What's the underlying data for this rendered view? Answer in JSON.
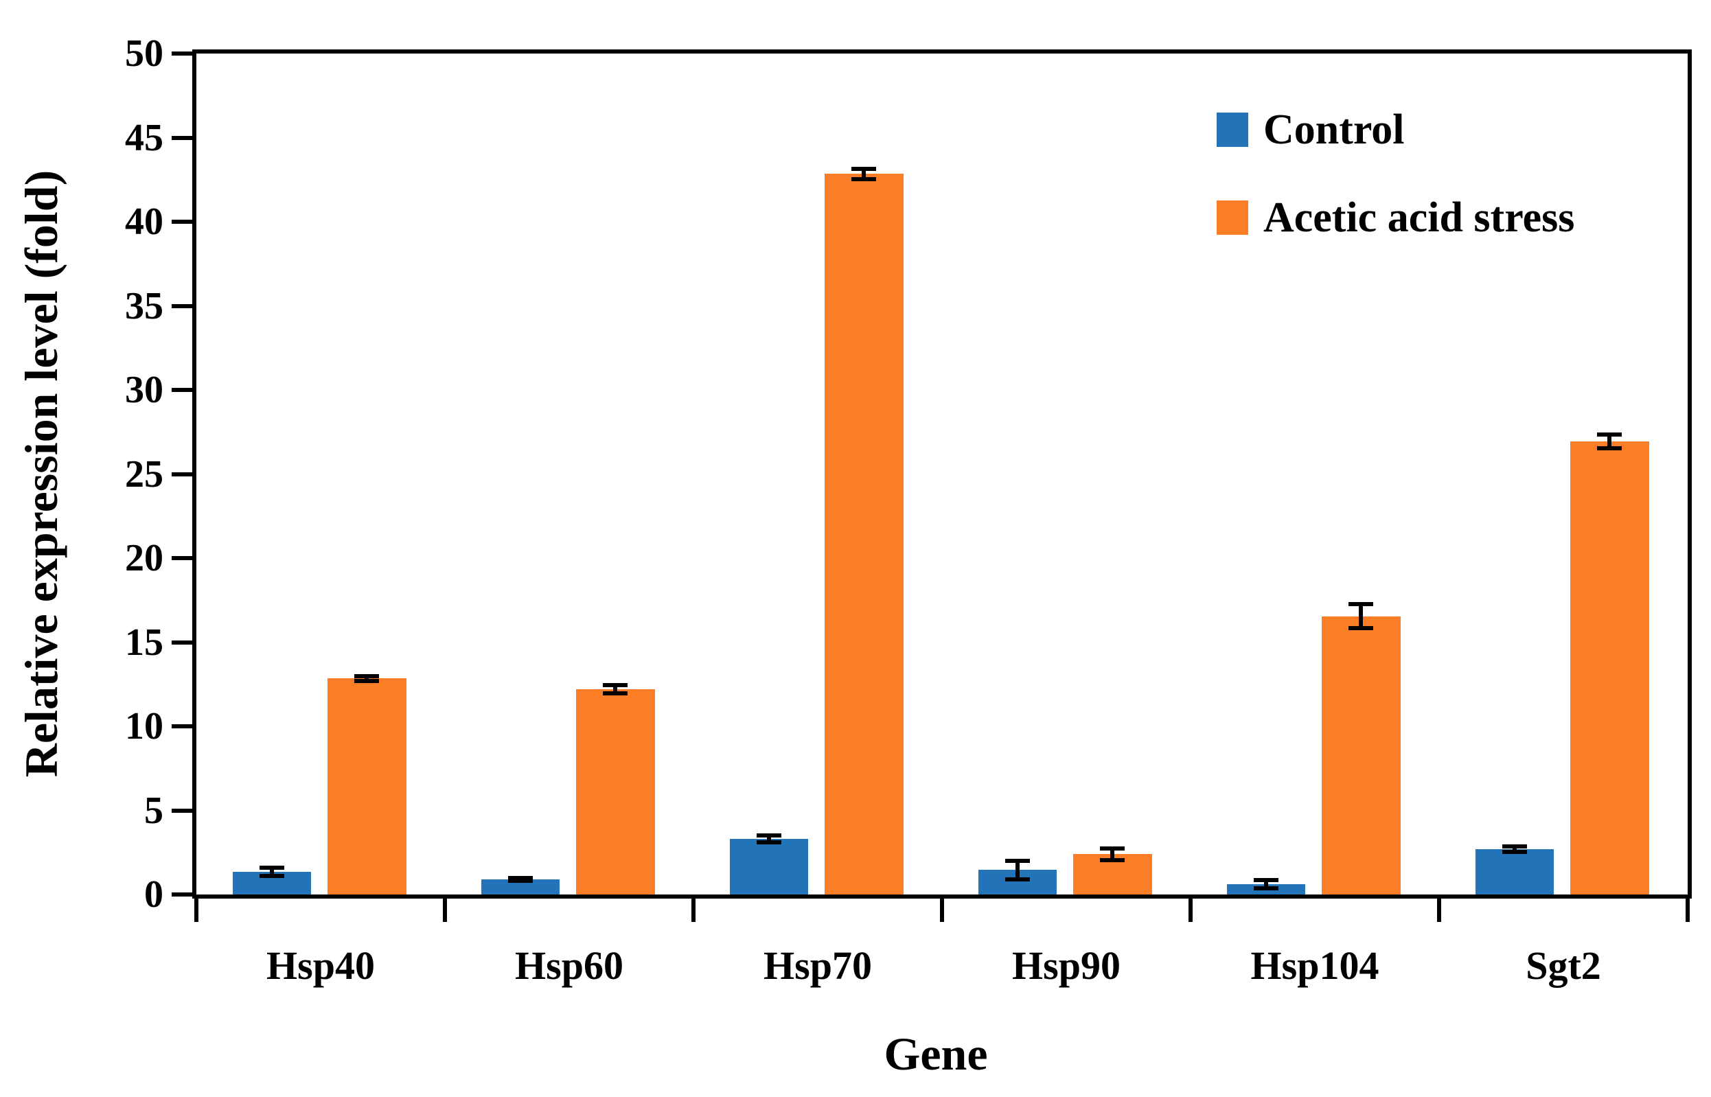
{
  "figure": {
    "background": "#FFFFFF",
    "axis_color": "#000000"
  },
  "chart_data": {
    "type": "bar",
    "title": "",
    "xlabel": "Gene",
    "ylabel": "Relative expression level (fold)",
    "ylim": [
      0,
      50
    ],
    "ytick_step": 5,
    "yticks": [
      "0",
      "5",
      "10",
      "15",
      "20",
      "25",
      "30",
      "35",
      "40",
      "45",
      "50"
    ],
    "categories": [
      "Hsp40",
      "Hsp60",
      "Hsp70",
      "Hsp90",
      "Hsp104",
      "Sgt2"
    ],
    "series": [
      {
        "name": "Control",
        "color": "#2373B9",
        "values": [
          1.35,
          0.9,
          3.3,
          1.45,
          0.6,
          2.7
        ],
        "errors": [
          0.25,
          0.1,
          0.2,
          0.55,
          0.25,
          0.15
        ]
      },
      {
        "name": "Acetic acid stress",
        "color": "#FB7D26",
        "values": [
          12.85,
          12.2,
          42.85,
          2.4,
          16.55,
          26.95
        ],
        "errors": [
          0.15,
          0.25,
          0.3,
          0.35,
          0.7,
          0.4
        ]
      }
    ],
    "error_bars": true,
    "grid": false,
    "legend_position": "top-right"
  }
}
